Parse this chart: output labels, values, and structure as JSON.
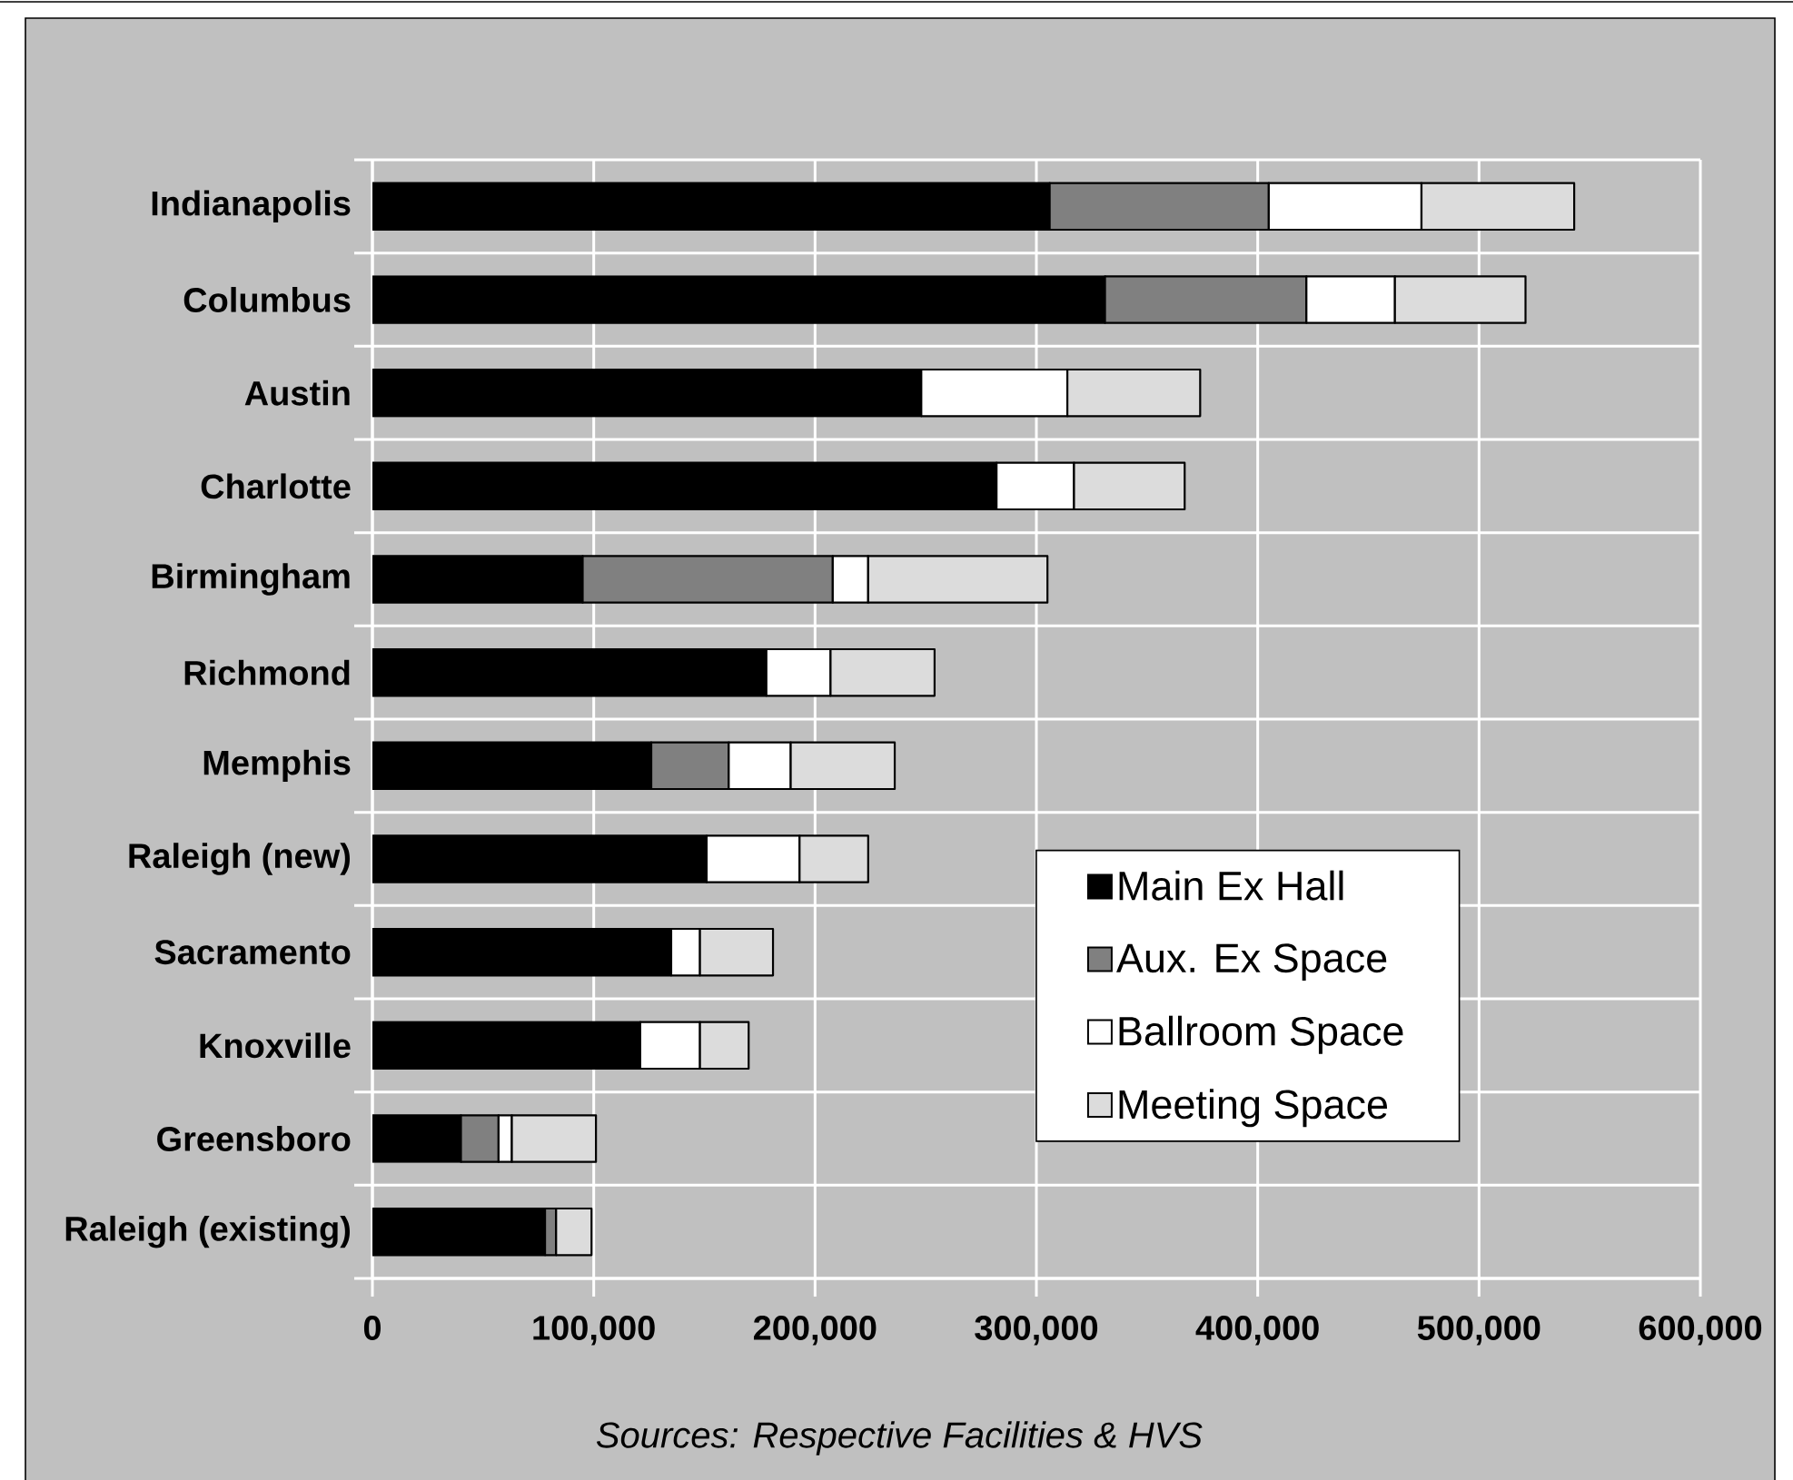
{
  "chart_data": {
    "type": "bar",
    "orientation": "horizontal",
    "stacked": true,
    "categories": [
      "Indianapolis",
      "Columbus",
      "Austin",
      "Charlotte",
      "Birmingham",
      "Richmond",
      "Memphis",
      "Raleigh (new)",
      "Sacramento",
      "Knoxville",
      "Greensboro",
      "Raleigh (existing)"
    ],
    "series": [
      {
        "name": "Main Ex Hall",
        "color": "#000000",
        "values": [
          306000,
          331000,
          248000,
          282000,
          95000,
          178000,
          126000,
          151000,
          135000,
          121000,
          40000,
          78000
        ]
      },
      {
        "name": "Aux. Ex Space",
        "color": "#808080",
        "values": [
          99000,
          91000,
          0,
          0,
          113000,
          0,
          35000,
          0,
          0,
          0,
          17000,
          5000
        ]
      },
      {
        "name": "Ballroom Space",
        "color": "#ffffff",
        "values": [
          69000,
          40000,
          66000,
          35000,
          16000,
          29000,
          28000,
          42000,
          13000,
          27000,
          6000,
          0
        ]
      },
      {
        "name": "Meeting Space",
        "color": "#dcdcdc",
        "values": [
          69000,
          59000,
          60000,
          50000,
          81000,
          47000,
          47000,
          31000,
          33000,
          22000,
          38000,
          16000
        ]
      }
    ],
    "xlim": [
      0,
      600000
    ],
    "xticks": [
      0,
      {
        "value": 100000,
        "label": "100,000"
      },
      {
        "value": 200000,
        "label": "200,000"
      },
      {
        "value": 300000,
        "label": "300,000"
      },
      {
        "value": 400000,
        "label": "400,000"
      },
      {
        "value": 500000,
        "label": "500,000"
      },
      {
        "value": 600000,
        "label": "600,000"
      }
    ],
    "grid": true,
    "legend": "bottom right",
    "annotations": [
      "Sources:  Respective Facilities & HVS"
    ]
  }
}
